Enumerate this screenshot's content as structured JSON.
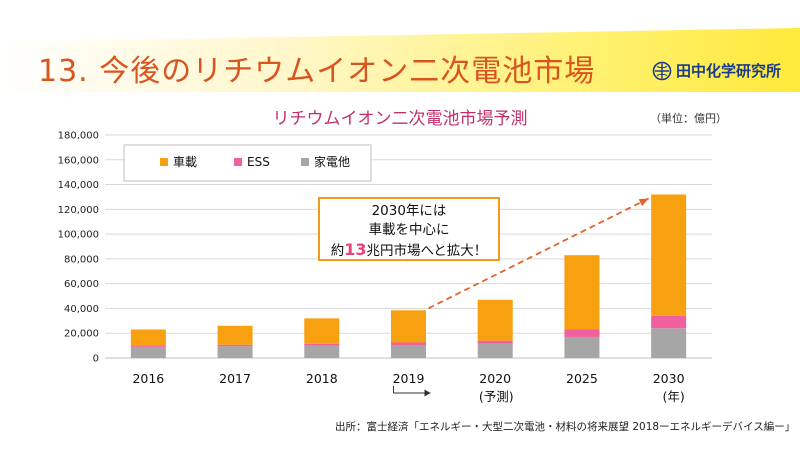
{
  "slide": {
    "title": "13. 今後のリチウムイオン二次電池市場",
    "logo_text": "田中化学研究所",
    "source": "出所：富士経済「エネルギー・大型二次電池・材料の将来展望 2018ーエネルギーデバイス編ー」"
  },
  "callout": {
    "line1": "2030年には",
    "line2": "車載を中心に",
    "line3_pre": "約",
    "line3_highlight": "13",
    "line3_post": "兆円市場へと拡大！"
  },
  "chart_data": {
    "type": "bar",
    "stacked": true,
    "title": "リチウムイオン二次電池市場予測",
    "unit_label": "（単位：億円）",
    "categories": [
      "2016",
      "2017",
      "2018",
      "2019",
      "2020",
      "2025",
      "2030"
    ],
    "series": [
      {
        "name": "家電他",
        "color": "#a6a6a6",
        "values": [
          9000,
          9500,
          10000,
          10500,
          11500,
          17000,
          24000
        ]
      },
      {
        "name": "ESS",
        "color": "#f0609e",
        "values": [
          1000,
          1200,
          1500,
          2000,
          2500,
          6000,
          10000
        ]
      },
      {
        "name": "車載",
        "color": "#f7a010",
        "values": [
          13000,
          15300,
          20500,
          26000,
          33000,
          60000,
          98000
        ]
      }
    ],
    "legend_order": [
      "車載",
      "ESS",
      "家電他"
    ],
    "legend_position": "top-left",
    "ylim": [
      0,
      180000
    ],
    "yticks": [
      0,
      20000,
      40000,
      60000,
      80000,
      100000,
      120000,
      140000,
      160000,
      180000
    ],
    "ytick_labels": [
      "0",
      "20,000",
      "40,000",
      "60,000",
      "80,000",
      "100,000",
      "120,000",
      "140,000",
      "160,000",
      "180,000"
    ],
    "forecast_label": "(予測)",
    "x_unit_label": "(年)",
    "grid": true
  }
}
